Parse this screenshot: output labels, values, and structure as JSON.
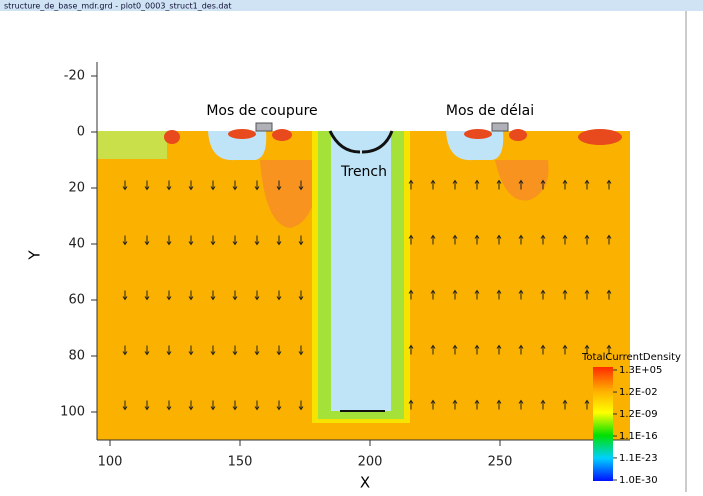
{
  "window_title": "structure_de_base_mdr.grd - plot0_0003_struct1_des.dat",
  "chart_data": {
    "type": "contour",
    "xlabel": "X",
    "ylabel": "Y",
    "xlim": [
      95,
      300
    ],
    "ylim": [
      -25,
      110
    ],
    "y_inverted": true,
    "xticks": [
      100,
      150,
      200,
      250
    ],
    "yticks": [
      -20,
      0,
      20,
      40,
      60,
      80,
      100
    ],
    "annotations": [
      "Mos de coupure",
      "Mos de délai",
      "Trench"
    ],
    "colorbar": {
      "title": "TotalCurrentDensity",
      "scale": "log",
      "clim": [
        1e-30,
        130000.0
      ],
      "ticks": [
        {
          "value": 130000.0,
          "label": "1.3E+05"
        },
        {
          "value": 0.012,
          "label": "1.2E-02"
        },
        {
          "value": 1.2e-09,
          "label": "1.2E-09"
        },
        {
          "value": 1.1e-16,
          "label": "1.1E-16"
        },
        {
          "value": 1.1e-23,
          "label": "1.1E-23"
        },
        {
          "value": 1e-30,
          "label": "1.0E-30"
        }
      ]
    }
  }
}
